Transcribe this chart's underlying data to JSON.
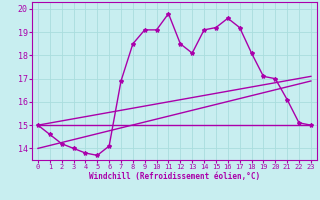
{
  "xlabel": "Windchill (Refroidissement éolien,°C)",
  "ylabel": "",
  "background_color": "#c8eef0",
  "line_color": "#aa00aa",
  "grid_color": "#aadddd",
  "x_ticks": [
    0,
    1,
    2,
    3,
    4,
    5,
    6,
    7,
    8,
    9,
    10,
    11,
    12,
    13,
    14,
    15,
    16,
    17,
    18,
    19,
    20,
    21,
    22,
    23
  ],
  "y_ticks": [
    14,
    15,
    16,
    17,
    18,
    19,
    20
  ],
  "ylim": [
    13.5,
    20.3
  ],
  "xlim": [
    -0.5,
    23.5
  ],
  "series1_x": [
    0,
    1,
    2,
    3,
    4,
    5,
    6,
    7,
    8,
    9,
    10,
    11,
    12,
    13,
    14,
    15,
    16,
    17,
    18,
    19,
    20,
    21,
    22,
    23
  ],
  "series1_y": [
    15.0,
    14.6,
    14.2,
    14.0,
    13.8,
    13.7,
    14.1,
    16.9,
    18.5,
    19.1,
    19.1,
    19.8,
    18.5,
    18.1,
    19.1,
    19.2,
    19.6,
    19.2,
    18.1,
    17.1,
    17.0,
    16.1,
    15.1,
    15.0
  ],
  "series2_x": [
    0,
    23
  ],
  "series2_y": [
    15.0,
    15.0
  ],
  "series3_x": [
    0,
    23
  ],
  "series3_y": [
    15.0,
    17.1
  ],
  "series4_x": [
    0,
    23
  ],
  "series4_y": [
    14.0,
    16.9
  ],
  "tick_fontsize": 5,
  "xlabel_fontsize": 5.5,
  "spine_linewidth": 0.8,
  "line_width": 1.0,
  "marker_size": 3
}
